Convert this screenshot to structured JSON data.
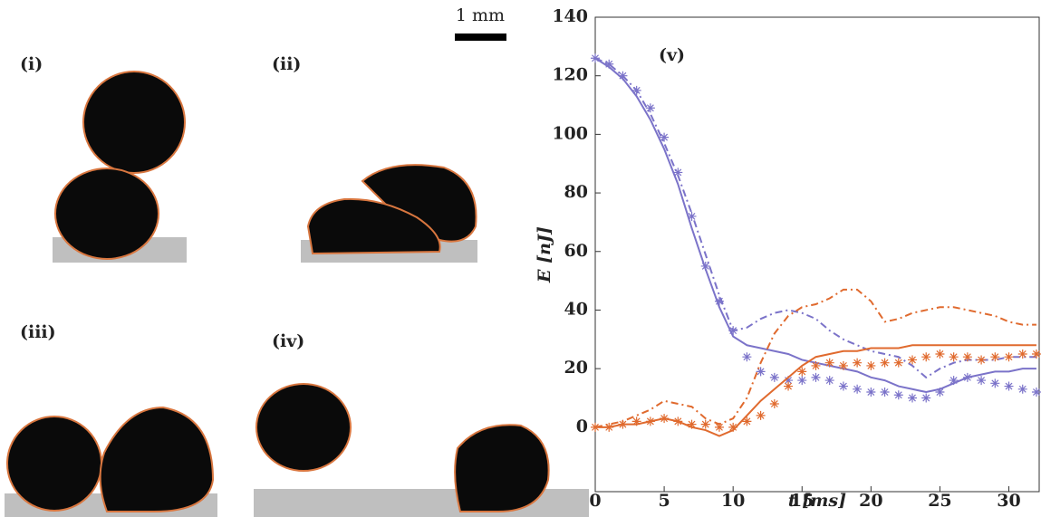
{
  "panels": [
    {
      "label": "(i)"
    },
    {
      "label": "(ii)"
    },
    {
      "label": "(iii)"
    },
    {
      "label": "(iv)"
    }
  ],
  "scale_bar": "1 mm",
  "chart_data": {
    "type": "line",
    "annotation": "(v)",
    "xlabel": "t [ms]",
    "ylabel": "E [nJ]",
    "xlim": [
      0,
      32.2
    ],
    "ylim": [
      -22,
      140
    ],
    "xticks": [
      0,
      5,
      10,
      15,
      20,
      25,
      30
    ],
    "yticks": [
      0,
      20,
      40,
      60,
      80,
      100,
      120,
      140
    ],
    "x": [
      0,
      1,
      2,
      3,
      4,
      5,
      6,
      7,
      8,
      9,
      10,
      11,
      12,
      13,
      14,
      15,
      16,
      17,
      18,
      19,
      20,
      21,
      22,
      23,
      24,
      25,
      26,
      27,
      28,
      29,
      30,
      31,
      32
    ],
    "series": [
      {
        "color": "#7b73c9",
        "style": "solid",
        "values": [
          126,
          123,
          119,
          113,
          105,
          95,
          83,
          68,
          54,
          41,
          31,
          28,
          27,
          26,
          25,
          23,
          22,
          21,
          20,
          19,
          17,
          16,
          14,
          13,
          12,
          13,
          15,
          17,
          18,
          19,
          19,
          20,
          20
        ]
      },
      {
        "color": "#7b73c9",
        "style": "dashdot",
        "values": [
          126,
          124,
          120,
          115,
          107,
          97,
          86,
          73,
          59,
          45,
          33,
          34,
          37,
          39,
          40,
          39,
          37,
          33,
          30,
          28,
          26,
          25,
          24,
          21,
          17,
          20,
          22,
          23,
          23,
          23,
          24,
          24,
          24
        ]
      },
      {
        "color": "#7b73c9",
        "style": "markers",
        "values": [
          126,
          124,
          120,
          115,
          109,
          99,
          87,
          72,
          55,
          43,
          33,
          24,
          19,
          17,
          16,
          16,
          17,
          16,
          14,
          13,
          12,
          12,
          11,
          10,
          10,
          12,
          16,
          17,
          16,
          15,
          14,
          13,
          12
        ]
      },
      {
        "color": "#e06a2e",
        "style": "solid",
        "values": [
          0,
          0,
          1,
          1,
          2,
          3,
          2,
          0,
          -1,
          -3,
          -1,
          4,
          9,
          13,
          17,
          21,
          24,
          25,
          26,
          26,
          27,
          27,
          27,
          28,
          28,
          28,
          28,
          28,
          28,
          28,
          28,
          28,
          28
        ]
      },
      {
        "color": "#e06a2e",
        "style": "dashdot",
        "values": [
          0,
          1,
          2,
          4,
          6,
          9,
          8,
          7,
          3,
          1,
          3,
          10,
          22,
          32,
          38,
          41,
          42,
          44,
          47,
          47,
          43,
          36,
          37,
          39,
          40,
          41,
          41,
          40,
          39,
          38,
          36,
          35,
          35
        ]
      },
      {
        "color": "#e06a2e",
        "style": "markers",
        "values": [
          0,
          0,
          1,
          2,
          2,
          3,
          2,
          1,
          1,
          0,
          0,
          2,
          4,
          8,
          14,
          19,
          21,
          22,
          21,
          22,
          21,
          22,
          22,
          23,
          24,
          25,
          24,
          24,
          23,
          24,
          24,
          25,
          25
        ]
      }
    ]
  }
}
